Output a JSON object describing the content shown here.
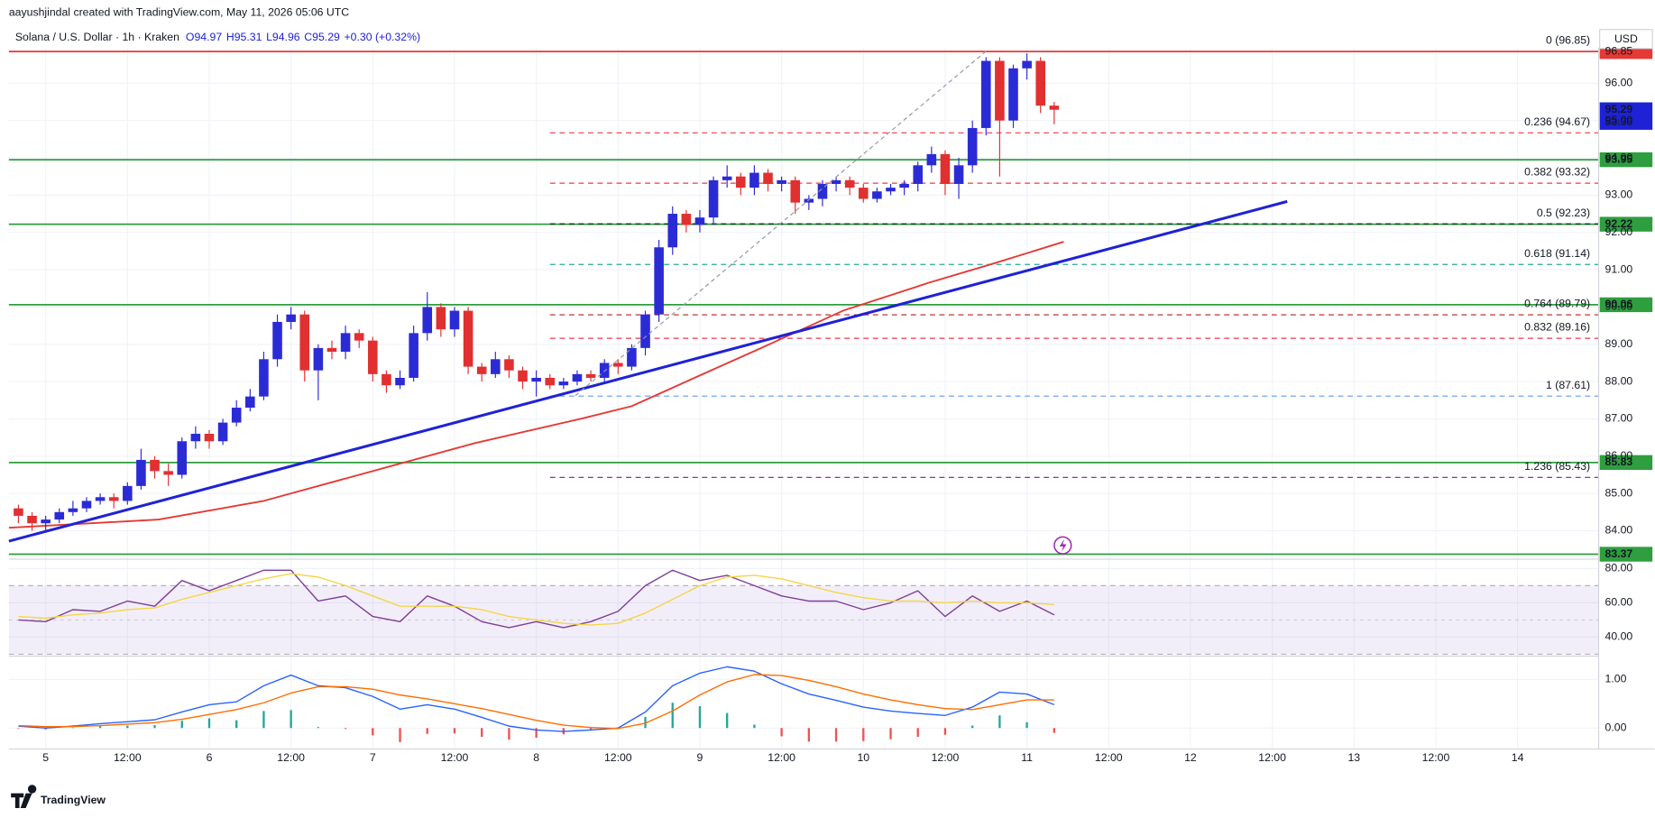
{
  "chart_data": [
    {
      "type": "candlestick",
      "attribution": "aayushjindal created with TradingView.com, May 11, 2026 05:06 UTC",
      "title": "Solana / U.S. Dollar · 1h · Kraken",
      "legend_values": [
        "O94.97",
        "H95.31",
        "L94.96",
        "C95.29",
        "+0.30 (+0.32%)"
      ],
      "currency": "USD",
      "brand": "TradingView",
      "up_color": "#2b2bd6",
      "down_color": "#e03030",
      "xlim": [
        -5.4,
        227.9
      ],
      "xticks": [
        {
          "value": 0,
          "label": "5"
        },
        {
          "value": 12,
          "label": "12:00"
        },
        {
          "value": 24,
          "label": "6"
        },
        {
          "value": 36,
          "label": "12:00"
        },
        {
          "value": 48,
          "label": "7"
        },
        {
          "value": 60,
          "label": "12:00"
        },
        {
          "value": 72,
          "label": "8"
        },
        {
          "value": 84,
          "label": "12:00"
        },
        {
          "value": 96,
          "label": "9"
        },
        {
          "value": 108,
          "label": "12:00"
        },
        {
          "value": 120,
          "label": "10"
        },
        {
          "value": 132,
          "label": "12:00"
        },
        {
          "value": 144,
          "label": "11"
        },
        {
          "value": 156,
          "label": "12:00"
        },
        {
          "value": 168,
          "label": "12"
        },
        {
          "value": 180,
          "label": "12:00"
        },
        {
          "value": 192,
          "label": "13"
        },
        {
          "value": 204,
          "label": "12:00"
        },
        {
          "value": 216,
          "label": "14"
        }
      ],
      "ylim": [
        83.24,
        96.96
      ],
      "yticks": [
        {
          "value": 84,
          "label": "84.00"
        },
        {
          "value": 85,
          "label": "85.00"
        },
        {
          "value": 86,
          "label": "86.00"
        },
        {
          "value": 87,
          "label": "87.00"
        },
        {
          "value": 88,
          "label": "88.00"
        },
        {
          "value": 89,
          "label": "89.00"
        },
        {
          "value": 90,
          "label": "90.00"
        },
        {
          "value": 91,
          "label": "91.00"
        },
        {
          "value": 92,
          "label": "92.00"
        },
        {
          "value": 93,
          "label": "93.00"
        },
        {
          "value": 94,
          "label": "94.00"
        },
        {
          "value": 95,
          "label": "95.00"
        },
        {
          "value": 96,
          "label": "96.00"
        }
      ],
      "grid": true,
      "x": [
        -4,
        -2,
        0,
        2,
        4,
        6,
        8,
        10,
        12,
        14,
        16,
        18,
        20,
        22,
        24,
        26,
        28,
        30,
        32,
        34,
        36,
        38,
        40,
        42,
        44,
        46,
        48,
        50,
        52,
        54,
        56,
        58,
        60,
        62,
        64,
        66,
        68,
        70,
        72,
        74,
        76,
        78,
        80,
        82,
        84,
        86,
        88,
        90,
        92,
        94,
        96,
        98,
        100,
        102,
        104,
        106,
        108,
        110,
        112,
        114,
        116,
        118,
        120,
        122,
        124,
        126,
        128,
        130,
        132,
        134,
        136,
        138,
        140,
        142,
        144,
        146,
        148
      ],
      "open": [
        84.6,
        84.4,
        84.2,
        84.3,
        84.5,
        84.6,
        84.8,
        84.9,
        84.8,
        85.2,
        85.9,
        85.6,
        85.5,
        86.4,
        86.6,
        86.4,
        86.9,
        87.3,
        87.6,
        88.6,
        89.6,
        89.8,
        88.3,
        88.9,
        88.8,
        89.3,
        89.1,
        88.2,
        87.9,
        88.1,
        89.3,
        90.0,
        89.4,
        89.9,
        88.4,
        88.2,
        88.6,
        88.3,
        88.0,
        88.1,
        87.9,
        88.0,
        88.2,
        88.1,
        88.5,
        88.4,
        88.9,
        89.8,
        91.6,
        92.5,
        92.2,
        92.4,
        93.4,
        93.5,
        93.2,
        93.6,
        93.3,
        93.4,
        92.8,
        92.9,
        93.3,
        93.4,
        93.2,
        92.9,
        93.1,
        93.2,
        93.3,
        93.8,
        94.1,
        93.3,
        93.8,
        94.8,
        96.6,
        95.0,
        96.4,
        96.6,
        95.4
      ],
      "high": [
        84.7,
        84.5,
        84.4,
        84.6,
        84.8,
        84.9,
        85.0,
        85.0,
        85.3,
        86.2,
        86.0,
        85.8,
        86.5,
        86.8,
        86.7,
        87.0,
        87.5,
        87.8,
        88.8,
        89.8,
        90.0,
        89.9,
        89.0,
        89.1,
        89.5,
        89.4,
        89.2,
        88.3,
        88.3,
        89.5,
        90.4,
        90.1,
        90.0,
        90.0,
        88.5,
        88.8,
        88.7,
        88.4,
        88.3,
        88.2,
        88.1,
        88.3,
        88.3,
        88.6,
        88.6,
        89.0,
        89.9,
        91.8,
        92.7,
        92.6,
        92.6,
        93.5,
        93.8,
        93.6,
        93.8,
        93.7,
        93.5,
        93.5,
        93.0,
        93.4,
        93.5,
        93.5,
        93.3,
        93.2,
        93.3,
        93.4,
        93.9,
        94.3,
        94.2,
        94.0,
        95.0,
        96.7,
        96.7,
        96.5,
        96.8,
        96.7,
        95.5
      ],
      "low": [
        84.2,
        84.0,
        84.0,
        84.2,
        84.4,
        84.5,
        84.7,
        84.6,
        84.7,
        85.1,
        85.4,
        85.2,
        85.4,
        86.2,
        86.2,
        86.3,
        86.8,
        87.2,
        87.5,
        88.4,
        89.4,
        88.0,
        87.5,
        88.6,
        88.6,
        88.9,
        88.0,
        87.7,
        87.8,
        88.0,
        89.1,
        89.2,
        89.2,
        88.2,
        88.0,
        88.1,
        88.1,
        87.8,
        87.6,
        87.8,
        87.8,
        87.9,
        88.0,
        88.0,
        88.2,
        88.3,
        88.7,
        89.6,
        91.4,
        92.0,
        92.0,
        92.2,
        93.2,
        93.0,
        93.0,
        93.1,
        93.1,
        92.5,
        92.6,
        92.7,
        93.1,
        93.0,
        92.8,
        92.8,
        93.0,
        93.0,
        93.1,
        93.6,
        93.0,
        92.9,
        93.6,
        94.6,
        93.5,
        94.8,
        96.1,
        95.2,
        94.9
      ],
      "close": [
        84.4,
        84.2,
        84.3,
        84.5,
        84.6,
        84.8,
        84.9,
        84.8,
        85.2,
        85.9,
        85.6,
        85.5,
        86.4,
        86.6,
        86.4,
        86.9,
        87.3,
        87.6,
        88.6,
        89.6,
        89.8,
        88.3,
        88.9,
        88.8,
        89.3,
        89.1,
        88.2,
        87.9,
        88.1,
        89.3,
        90.0,
        89.4,
        89.9,
        88.4,
        88.2,
        88.6,
        88.3,
        88.0,
        88.1,
        87.9,
        88.0,
        88.2,
        88.1,
        88.5,
        88.4,
        88.9,
        89.8,
        91.6,
        92.5,
        92.2,
        92.4,
        93.4,
        93.5,
        93.2,
        93.6,
        93.3,
        93.4,
        92.8,
        92.9,
        93.3,
        93.4,
        93.2,
        92.9,
        93.1,
        93.2,
        93.3,
        93.8,
        94.1,
        93.3,
        93.8,
        94.8,
        96.6,
        95.0,
        96.4,
        96.6,
        95.4,
        95.29
      ],
      "moving_average": {
        "color": "#e53935",
        "x": [
          -5.4,
          16.6,
          32,
          52,
          63,
          78.5,
          86,
          94,
          105,
          117,
          129.6,
          139,
          149.4
        ],
        "values": [
          84.08,
          84.3,
          84.8,
          85.8,
          86.35,
          87.0,
          87.34,
          88.0,
          88.9,
          89.9,
          90.65,
          91.16,
          91.75
        ]
      },
      "trendline": {
        "color": "#1e22d6",
        "x": [
          -5.4,
          182.2
        ],
        "values": [
          83.72,
          92.83
        ]
      },
      "levels": [
        93.95,
        92.22,
        90.06,
        85.83,
        83.37
      ],
      "level_color": "#2e9e3e",
      "resistance": 96.85,
      "resistance_color": "#e53935",
      "current": 95.29,
      "countdown": "53:36",
      "current_color": "#1e22d6",
      "fib": [
        {
          "label": "0 (96.85)",
          "value": 96.85,
          "color": "#787b86"
        },
        {
          "label": "0.236 (94.67)",
          "value": 94.67,
          "color": "#f23645"
        },
        {
          "label": "0.382 (93.32)",
          "value": 93.32,
          "color": "#f23645"
        },
        {
          "label": "0.5 (92.23)",
          "value": 92.23,
          "color": "#131722"
        },
        {
          "label": "0.618 (91.14)",
          "value": 91.14,
          "color": "#22ab94"
        },
        {
          "label": "0.764 (89.79)",
          "value": 89.79,
          "color": "#b71c1c"
        },
        {
          "label": "0.832 (89.16)",
          "value": 89.16,
          "color": "#f23645"
        },
        {
          "label": "1 (87.61)",
          "value": 87.61,
          "color": "#5b9cf6"
        },
        {
          "label": "1.236 (85.43)",
          "value": 85.43,
          "color": "#9c27b0"
        }
      ]
    },
    {
      "type": "line",
      "ylim": [
        28.9,
        85.5
      ],
      "yticks": [
        {
          "value": 40,
          "label": "40.00"
        },
        {
          "value": 60,
          "label": "60.00"
        },
        {
          "value": 80,
          "label": "80.00"
        }
      ],
      "band": [
        30,
        70
      ],
      "midline": 50,
      "x": [
        -4,
        0,
        4,
        8,
        12,
        16,
        20,
        24,
        28,
        32,
        36,
        40,
        44,
        48,
        52,
        56,
        60,
        64,
        68,
        72,
        76,
        80,
        84,
        88,
        92,
        96,
        100,
        104,
        108,
        112,
        116,
        120,
        124,
        128,
        132,
        136,
        140,
        144,
        148
      ],
      "series": [
        {
          "color": "#7e3f98",
          "values": [
            50,
            49,
            56,
            55,
            61,
            58,
            73,
            67,
            73,
            79,
            79,
            61,
            64,
            52,
            49,
            64,
            58,
            49,
            45.5,
            49,
            45.5,
            49,
            55,
            70,
            79,
            73,
            76,
            70,
            64,
            61,
            61,
            56,
            60,
            67,
            52,
            64,
            55,
            61,
            53
          ]
        },
        {
          "color": "#f5d547",
          "values": [
            52,
            51,
            53,
            54,
            56,
            57,
            62,
            66,
            70,
            74,
            77,
            75,
            70,
            64,
            58,
            58,
            58,
            56,
            52,
            50,
            48,
            47,
            48,
            54,
            62,
            70,
            75,
            76,
            74,
            70,
            66,
            63,
            61,
            61,
            60,
            61,
            60,
            60,
            59
          ]
        }
      ]
    },
    {
      "type": "line",
      "ylim": [
        -0.43,
        1.48
      ],
      "yticks": [
        {
          "value": 0,
          "label": "0.00"
        },
        {
          "value": 1,
          "label": "1.00"
        }
      ],
      "x": [
        -4,
        0,
        4,
        8,
        12,
        16,
        20,
        24,
        28,
        32,
        36,
        40,
        44,
        48,
        52,
        56,
        60,
        64,
        68,
        72,
        76,
        80,
        84,
        88,
        92,
        96,
        100,
        104,
        108,
        112,
        116,
        120,
        124,
        128,
        132,
        136,
        140,
        144,
        148
      ],
      "series": [
        {
          "color": "#2962ff",
          "values": [
            0.04,
            0,
            0.04,
            0.09,
            0.13,
            0.17,
            0.33,
            0.48,
            0.54,
            0.87,
            1.09,
            0.87,
            0.83,
            0.65,
            0.39,
            0.48,
            0.39,
            0.22,
            0.04,
            -0.04,
            -0.07,
            -0.04,
            0,
            0.33,
            0.87,
            1.13,
            1.26,
            1.17,
            0.91,
            0.7,
            0.57,
            0.43,
            0.35,
            0.3,
            0.26,
            0.43,
            0.74,
            0.7,
            0.48
          ]
        },
        {
          "color": "#ff6d00",
          "values": [
            0.05,
            0.03,
            0.03,
            0.05,
            0.08,
            0.11,
            0.18,
            0.28,
            0.38,
            0.52,
            0.72,
            0.85,
            0.85,
            0.8,
            0.68,
            0.6,
            0.5,
            0.4,
            0.28,
            0.16,
            0.06,
            0.01,
            -0.01,
            0.1,
            0.35,
            0.68,
            0.95,
            1.1,
            1.08,
            0.98,
            0.85,
            0.7,
            0.58,
            0.48,
            0.4,
            0.38,
            0.48,
            0.58,
            0.58
          ]
        }
      ],
      "histogram": [
        -0.01,
        -0.03,
        0.01,
        0.04,
        0.05,
        0.06,
        0.15,
        0.2,
        0.16,
        0.35,
        0.37,
        0.02,
        -0.02,
        -0.15,
        -0.29,
        -0.12,
        -0.11,
        -0.18,
        -0.24,
        -0.2,
        -0.13,
        -0.05,
        0.01,
        0.23,
        0.52,
        0.45,
        0.31,
        0.07,
        -0.17,
        -0.28,
        -0.28,
        -0.27,
        -0.23,
        -0.18,
        -0.14,
        0.05,
        0.26,
        0.12,
        -0.1
      ],
      "histogram_colors": [
        "#26a69a",
        "#ef5350"
      ]
    }
  ]
}
